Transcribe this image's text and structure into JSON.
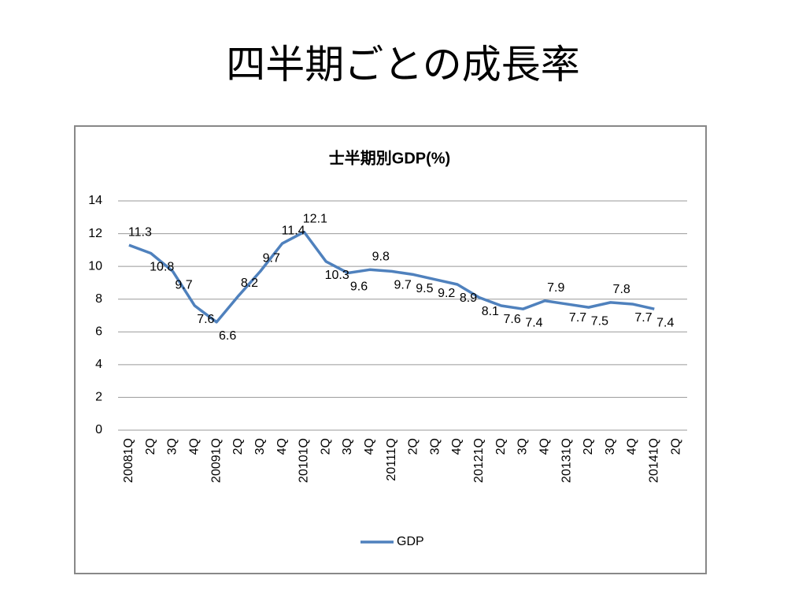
{
  "title": "四半期ごとの成長率",
  "chart_data": {
    "type": "line",
    "title": "士半期別GDP(%)",
    "categories": [
      "20081Q",
      "2Q",
      "3Q",
      "4Q",
      "20091Q",
      "2Q",
      "3Q",
      "4Q",
      "20101Q",
      "2Q",
      "3Q",
      "4Q",
      "20111Q",
      "2Q",
      "3Q",
      "4Q",
      "20121Q",
      "2Q",
      "3Q",
      "4Q",
      "20131Q",
      "2Q",
      "3Q",
      "4Q",
      "20141Q",
      "2Q"
    ],
    "series": [
      {
        "name": "GDP",
        "color": "#4f81bd",
        "values": [
          11.3,
          10.8,
          9.7,
          7.6,
          6.6,
          8.2,
          9.7,
          11.4,
          12.1,
          10.3,
          9.6,
          9.8,
          9.7,
          9.5,
          9.2,
          8.9,
          8.1,
          7.6,
          7.4,
          7.9,
          7.7,
          7.5,
          7.8,
          7.7,
          7.4,
          null
        ]
      }
    ],
    "ylim": [
      0,
      14
    ],
    "yticks": [
      0,
      2,
      4,
      6,
      8,
      10,
      12,
      14
    ],
    "grid": true,
    "legend": "bottom"
  }
}
